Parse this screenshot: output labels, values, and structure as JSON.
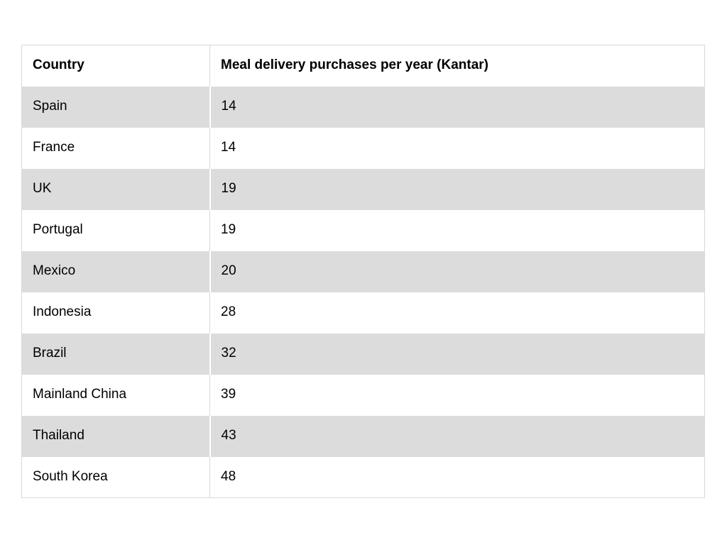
{
  "table": {
    "columns": [
      "Country",
      "Meal delivery purchases per year (Kantar)"
    ],
    "rows": [
      {
        "country": "Spain",
        "value": "14"
      },
      {
        "country": "France",
        "value": "14"
      },
      {
        "country": "UK",
        "value": "19"
      },
      {
        "country": "Portugal",
        "value": "19"
      },
      {
        "country": "Mexico",
        "value": "20"
      },
      {
        "country": "Indonesia",
        "value": "28"
      },
      {
        "country": "Brazil",
        "value": "32"
      },
      {
        "country": "Mainland China",
        "value": "39"
      },
      {
        "country": "Thailand",
        "value": "43"
      },
      {
        "country": "South Korea",
        "value": "48"
      }
    ]
  },
  "chart_data": {
    "type": "table",
    "title": "",
    "columns": [
      "Country",
      "Meal delivery purchases per year (Kantar)"
    ],
    "categories": [
      "Spain",
      "France",
      "UK",
      "Portugal",
      "Mexico",
      "Indonesia",
      "Brazil",
      "Mainland China",
      "Thailand",
      "South Korea"
    ],
    "values": [
      14,
      14,
      19,
      19,
      20,
      28,
      32,
      39,
      43,
      48
    ],
    "layout": {
      "stripe_start": "first-data-row",
      "legend": "none",
      "grid": "cell-borders"
    }
  },
  "colors": {
    "page_background": "#ffffff",
    "row_stripe": "#dcdcdc",
    "border": "#d9d9d9",
    "text": "#000000"
  }
}
